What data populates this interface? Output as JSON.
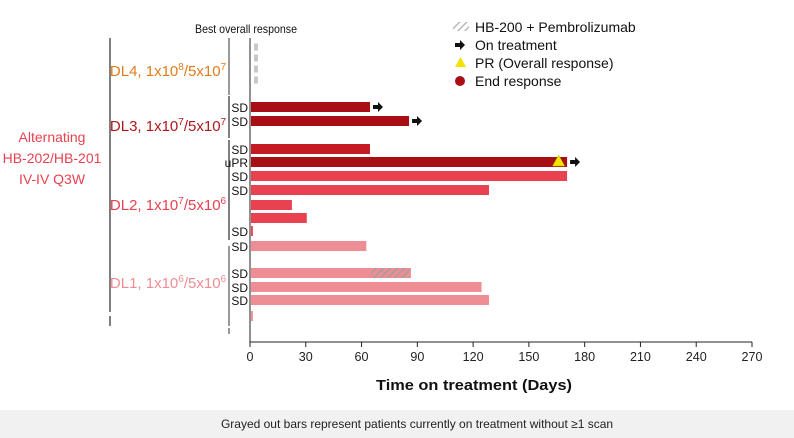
{
  "chart_data": {
    "type": "bar",
    "orientation": "horizontal",
    "column_header": "Best overall response",
    "regimen_label": [
      "Alternating",
      "HB-202/HB-201",
      "IV-IV Q3W"
    ],
    "xlabel": "Time on treatment (Days)",
    "xlim": [
      0,
      270
    ],
    "xticks": [
      0,
      30,
      60,
      90,
      120,
      150,
      180,
      210,
      240,
      270
    ],
    "grid": false,
    "legend_position": "top-right",
    "legend": [
      {
        "label": "HB-200 + Pembrolizumab",
        "marker": "hatched"
      },
      {
        "label": "On treatment",
        "marker": "arrow"
      },
      {
        "label": "PR (Overall response)",
        "marker": "triangle"
      },
      {
        "label": "End response",
        "marker": "circle"
      }
    ],
    "groups": [
      {
        "base": "DL4, 1x10",
        "exp1": "8",
        "mid": "/5x10",
        "exp2": "7",
        "color": "#e07b1e"
      },
      {
        "base": "DL3, 1x10",
        "exp1": "7",
        "mid": "/5x10",
        "exp2": "7",
        "color": "#b0171c"
      },
      {
        "base": "DL2, 1x10",
        "exp1": "7",
        "mid": "/5x10",
        "exp2": "6",
        "color": "#e8414f"
      },
      {
        "base": "DL1, 1x10",
        "exp1": "6",
        "mid": "/5x10",
        "exp2": "6",
        "color": "#ef8d94"
      }
    ],
    "patients": [
      {
        "group": "DL4",
        "response": "",
        "days": 3,
        "grayed": true
      },
      {
        "group": "DL4",
        "response": "",
        "days": 3,
        "grayed": true
      },
      {
        "group": "DL4",
        "response": "",
        "days": 3,
        "grayed": true
      },
      {
        "group": "DL4",
        "response": "",
        "days": 3,
        "grayed": true
      },
      {
        "group": "DL3",
        "response": "SD",
        "days": 64,
        "color": "#a80f14",
        "on_treatment": true
      },
      {
        "group": "DL3",
        "response": "SD",
        "days": 85,
        "color": "#a80f14",
        "on_treatment": true
      },
      {
        "group": "DL2",
        "response": "SD",
        "days": 64,
        "color": "#c41a24"
      },
      {
        "group": "DL2",
        "response": "uPR",
        "days": 170,
        "color": "#a80f14",
        "on_treatment": true,
        "pr_day": 166
      },
      {
        "group": "DL2",
        "response": "SD",
        "days": 170,
        "color": "#e8414f"
      },
      {
        "group": "DL2",
        "response": "SD",
        "days": 128,
        "color": "#e8414f"
      },
      {
        "group": "DL2",
        "response": "",
        "days": 22,
        "color": "#e8414f"
      },
      {
        "group": "DL2",
        "response": "",
        "days": 30,
        "color": "#e8414f"
      },
      {
        "group": "DL2",
        "response": "SD",
        "days": 1,
        "color": "#e8414f"
      },
      {
        "group": "DL2",
        "response": "SD",
        "days": 62,
        "color": "#ef8d94"
      },
      {
        "group": "DL1",
        "response": "SD",
        "days": 86,
        "color": "#ef8d94",
        "hatch_range": [
          65,
          86
        ]
      },
      {
        "group": "DL1",
        "response": "SD",
        "days": 124,
        "color": "#ef8d94"
      },
      {
        "group": "DL1",
        "response": "SD",
        "days": 128,
        "color": "#ef8d94"
      },
      {
        "group": "DL1",
        "response": "",
        "days": 1,
        "color": "#ef8d94"
      }
    ]
  },
  "footer": {
    "note": "Grayed out bars represent patients currently on treatment without ≥1 scan"
  }
}
